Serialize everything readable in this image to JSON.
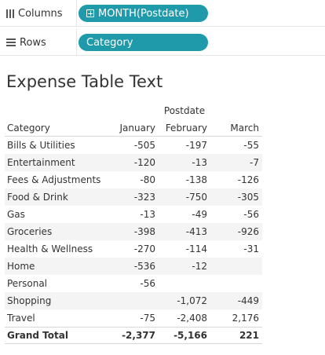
{
  "shelves": {
    "columns": {
      "label": "Columns",
      "pill": "MONTH(Postdate)"
    },
    "rows": {
      "label": "Rows",
      "pill": "Category"
    }
  },
  "title": "Expense Table Text",
  "table": {
    "group_header": "Postdate",
    "row_header": "Category",
    "columns": [
      "January",
      "February",
      "March"
    ],
    "rows": [
      {
        "category": "Bills & Utilities",
        "values": [
          "-505",
          "-197",
          "-55"
        ]
      },
      {
        "category": "Entertainment",
        "values": [
          "-120",
          "-13",
          "-7"
        ]
      },
      {
        "category": "Fees & Adjustments",
        "values": [
          "-80",
          "-138",
          "-126"
        ]
      },
      {
        "category": "Food & Drink",
        "values": [
          "-323",
          "-750",
          "-305"
        ]
      },
      {
        "category": "Gas",
        "values": [
          "-13",
          "-49",
          "-56"
        ]
      },
      {
        "category": "Groceries",
        "values": [
          "-398",
          "-413",
          "-926"
        ]
      },
      {
        "category": "Health & Wellness",
        "values": [
          "-270",
          "-114",
          "-31"
        ]
      },
      {
        "category": "Home",
        "values": [
          "-536",
          "-12",
          ""
        ]
      },
      {
        "category": "Personal",
        "values": [
          "-56",
          "",
          ""
        ]
      },
      {
        "category": "Shopping",
        "values": [
          "",
          "-1,072",
          "-449"
        ]
      },
      {
        "category": "Travel",
        "values": [
          "-75",
          "-2,408",
          "2,176"
        ]
      }
    ],
    "total": {
      "category": "Grand Total",
      "values": [
        "-2,377",
        "-5,166",
        "221"
      ]
    }
  }
}
